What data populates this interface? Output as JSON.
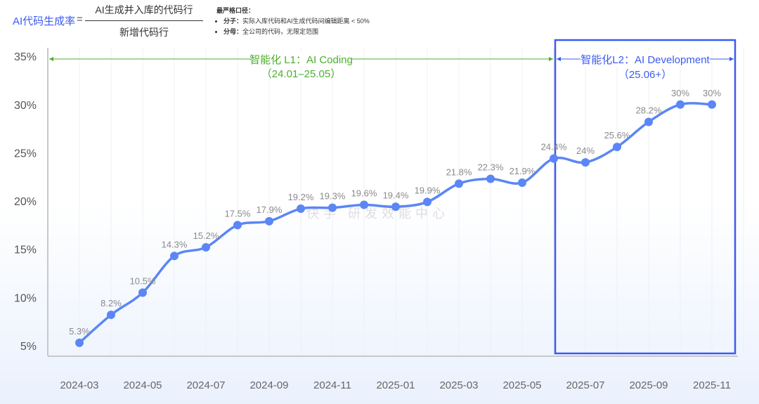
{
  "formula": {
    "lhs": "AI代码生成率",
    "eq": "=",
    "numerator": "AI生成并入库的代码行",
    "denominator": "新增代码行"
  },
  "note": {
    "title": "最严格口径：",
    "items": [
      {
        "label": "分子：",
        "text": "实际入库代码和AI生成代码间编辑距离 < 50%"
      },
      {
        "label": "分母：",
        "text": "全公司的代码，无限定范围"
      }
    ]
  },
  "watermark": "快手 研发效能中心",
  "chart_data": {
    "type": "line",
    "title": "",
    "xlabel": "",
    "ylabel": "",
    "ylim": [
      5,
      35
    ],
    "yticks": [
      "5%",
      "10%",
      "15%",
      "20%",
      "25%",
      "30%",
      "35%"
    ],
    "ytick_values": [
      5,
      10,
      15,
      20,
      25,
      30,
      35
    ],
    "xtick_labels": [
      "2024-03",
      "2024-05",
      "2024-07",
      "2024-09",
      "2024-11",
      "2025-01",
      "2025-03",
      "2025-05",
      "2025-07",
      "2025-09",
      "2025-11"
    ],
    "grid": "vertical",
    "smooth": true,
    "line_color": "#5b86f5",
    "categories": [
      "2024-03",
      "2024-04",
      "2024-05",
      "2024-06",
      "2024-07",
      "2024-08",
      "2024-09",
      "2024-10",
      "2024-11",
      "2024-12",
      "2025-01",
      "2025-02",
      "2025-03",
      "2025-04",
      "2025-05",
      "2025-06",
      "2025-07",
      "2025-08",
      "2025-09",
      "2025-10",
      "2025-11"
    ],
    "values": [
      5.3,
      8.2,
      10.5,
      14.3,
      15.2,
      17.5,
      17.9,
      19.2,
      19.3,
      19.6,
      19.4,
      19.9,
      21.8,
      22.3,
      21.9,
      24.4,
      24,
      25.6,
      28.2,
      30,
      30
    ],
    "data_labels": [
      "5.3%",
      "8.2%",
      "10.5%",
      "14.3%",
      "15.2%",
      "17.5%",
      "17.9%",
      "19.2%",
      "19.3%",
      "19.6%",
      "19.4%",
      "19.9%",
      "21.8%",
      "22.3%",
      "21.9%",
      "24.4%",
      "24%",
      "25.6%",
      "28.2%",
      "30%",
      "30%"
    ],
    "annotations": [
      {
        "line1": "智能化 L1：AI Coding",
        "line2": "（24.01–25.05）",
        "color": "#4caf2e",
        "from": "2024-02",
        "to": "2025-06"
      },
      {
        "line1": "智能化L2：AI Development",
        "line2": "（25.06+）",
        "color": "#3b5bf0",
        "from": "2025-06",
        "to": "2025-12",
        "boxed": true
      }
    ]
  }
}
